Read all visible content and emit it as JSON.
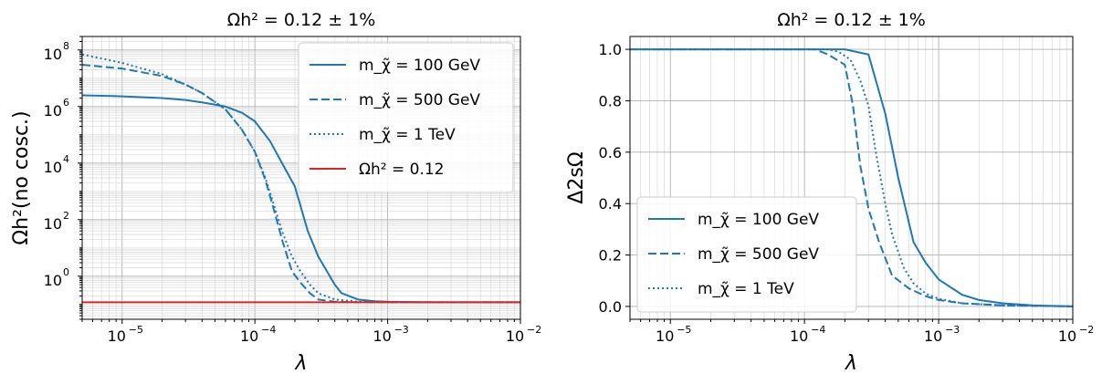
{
  "chart_data": [
    {
      "type": "line",
      "title": "Ωh² = 0.12 ± 1%",
      "xlabel": "λ",
      "ylabel": "Ωh²(no cosc.)",
      "xscale": "log",
      "yscale": "log",
      "xlim": [
        5e-06,
        0.01
      ],
      "ylim": [
        0.03,
        300000000.0
      ],
      "xticks": [
        "10",
        "10",
        "10",
        "10"
      ],
      "xtick_exps": [
        "−5",
        "−4",
        "−3",
        "−2"
      ],
      "yticks": [
        "10",
        "10",
        "10",
        "10",
        "10"
      ],
      "ytick_exps": [
        "0",
        "2",
        "4",
        "6",
        "8"
      ],
      "grid": true,
      "legend_position": "top-right",
      "series": [
        {
          "name": "m_χ̃ = 100 GeV",
          "style": "solid",
          "color": "#1f77b4",
          "x": [
            5e-06,
            1e-05,
            2e-05,
            3e-05,
            4e-05,
            6e-05,
            8e-05,
            0.0001,
            0.00013,
            0.00016,
            0.0002,
            0.00025,
            0.0003,
            0.0004,
            0.00045,
            0.0006,
            0.0008,
            0.001,
            0.002,
            0.01
          ],
          "y": [
            2500000.0,
            2300000.0,
            2000000.0,
            1700000.0,
            1400000.0,
            1000000.0,
            600000.0,
            300000.0,
            60000.0,
            10000.0,
            1500,
            40,
            5,
            0.5,
            0.25,
            0.15,
            0.13,
            0.125,
            0.12,
            0.12
          ]
        },
        {
          "name": "m_χ̃ = 500 GeV",
          "style": "dashed",
          "color": "#1f77b4",
          "x": [
            5e-06,
            1e-05,
            2e-05,
            3e-05,
            4e-05,
            6e-05,
            8e-05,
            0.0001,
            0.00012,
            0.00014,
            0.00016,
            0.00019,
            0.00022,
            0.00026,
            0.0003,
            0.0004,
            0.0006,
            0.001,
            0.01
          ],
          "y": [
            30000000.0,
            22000000.0,
            12000000.0,
            6000000.0,
            3000000.0,
            800000.0,
            150000.0,
            25000.0,
            2500,
            200,
            20,
            1.5,
            0.6,
            0.25,
            0.15,
            0.125,
            0.12,
            0.12,
            0.12
          ]
        },
        {
          "name": "m_χ̃ = 1 TeV",
          "style": "dotted",
          "color": "#1f77b4",
          "x": [
            5e-06,
            1e-05,
            2e-05,
            3e-05,
            4e-05,
            6e-05,
            8e-05,
            0.0001,
            0.00012,
            0.00014,
            0.00016,
            0.00019,
            0.00022,
            0.00026,
            0.0003,
            0.0004,
            0.0006,
            0.001,
            0.01
          ],
          "y": [
            70000000.0,
            35000000.0,
            14000000.0,
            6000000.0,
            3000000.0,
            800000.0,
            150000.0,
            25000.0,
            3000,
            300,
            40,
            5,
            1.5,
            0.5,
            0.25,
            0.15,
            0.125,
            0.12,
            0.12
          ]
        },
        {
          "name": "Ωh² = 0.12",
          "style": "solid",
          "color": "#d62728",
          "x": [
            5e-06,
            0.01
          ],
          "y": [
            0.12,
            0.12
          ]
        }
      ]
    },
    {
      "type": "line",
      "title": "Ωh² = 0.12 ± 1%",
      "xlabel": "λ",
      "ylabel": "Δ2sΩ",
      "xscale": "log",
      "yscale": "linear",
      "xlim": [
        5e-06,
        0.01
      ],
      "ylim": [
        -0.05,
        1.05
      ],
      "xticks": [
        "10",
        "10",
        "10",
        "10"
      ],
      "xtick_exps": [
        "−5",
        "−4",
        "−3",
        "−2"
      ],
      "yticks": [
        "0.0",
        "0.2",
        "0.4",
        "0.6",
        "0.8",
        "1.0"
      ],
      "grid": true,
      "legend_position": "bottom-left",
      "series": [
        {
          "name": "m_χ̃ = 100 GeV",
          "style": "solid",
          "color": "#1f77b4",
          "x": [
            5e-06,
            0.0001,
            0.0002,
            0.0003,
            0.0004,
            0.0005,
            0.00065,
            0.0008,
            0.001,
            0.0015,
            0.002,
            0.003,
            0.005,
            0.01
          ],
          "y": [
            1.0,
            1.0,
            1.0,
            0.98,
            0.75,
            0.5,
            0.25,
            0.17,
            0.105,
            0.045,
            0.025,
            0.012,
            0.004,
            0.0
          ]
        },
        {
          "name": "m_χ̃ = 500 GeV",
          "style": "dashed",
          "color": "#1f77b4",
          "x": [
            5e-06,
            0.00012,
            0.00015,
            0.0002,
            0.00023,
            0.00026,
            0.0003,
            0.00036,
            0.00045,
            0.0006,
            0.0008,
            0.001,
            0.0015,
            0.003,
            0.01
          ],
          "y": [
            1.0,
            1.0,
            0.98,
            0.94,
            0.78,
            0.55,
            0.38,
            0.25,
            0.12,
            0.07,
            0.04,
            0.025,
            0.012,
            0.004,
            0.0
          ]
        },
        {
          "name": "m_χ̃ = 1 TeV",
          "style": "dotted",
          "color": "#1f77b4",
          "x": [
            5e-06,
            0.00015,
            0.00018,
            0.00022,
            0.00026,
            0.0003,
            0.00034,
            0.0004,
            0.00045,
            0.00055,
            0.00065,
            0.0008,
            0.001,
            0.0015,
            0.003,
            0.01
          ],
          "y": [
            1.0,
            1.0,
            0.99,
            0.96,
            0.88,
            0.78,
            0.6,
            0.4,
            0.28,
            0.15,
            0.09,
            0.05,
            0.03,
            0.012,
            0.004,
            0.0
          ]
        }
      ]
    }
  ]
}
